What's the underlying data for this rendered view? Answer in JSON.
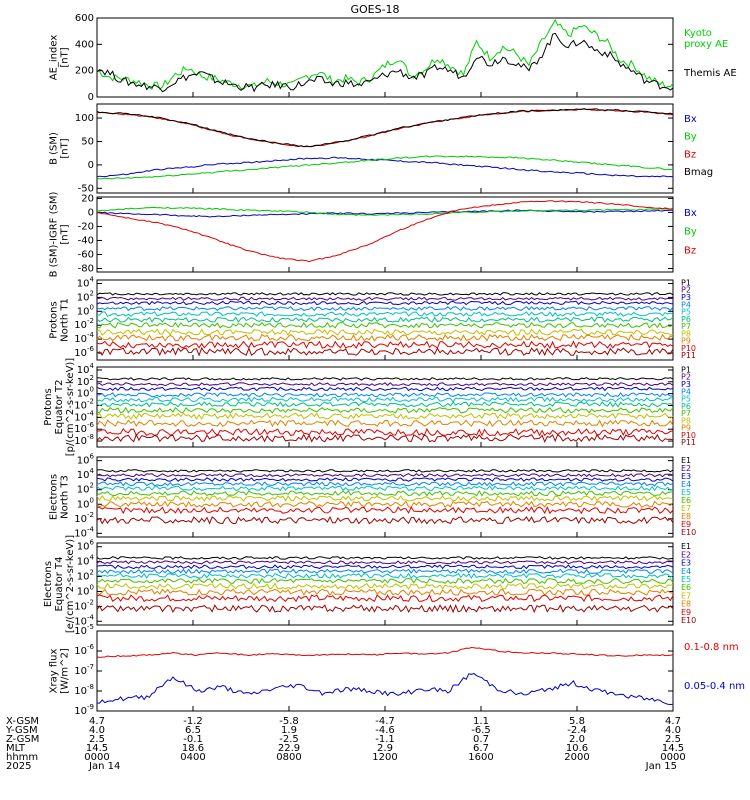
{
  "title": "GOES-18",
  "chart_data": [
    {
      "type": "line",
      "ylabel": "AE_index\n[nT]",
      "yticks": [
        "600",
        "400",
        "200",
        "0"
      ],
      "ylim": [
        0,
        600
      ],
      "series": [
        {
          "name": "Kyoto\nproxy AE",
          "color": "#00d000",
          "values": [
            200,
            150,
            140,
            120,
            90,
            80,
            170,
            220,
            160,
            140,
            110,
            90,
            80,
            120,
            100,
            90,
            160,
            190,
            120,
            140,
            110,
            150,
            240,
            300,
            160,
            210,
            300,
            240,
            170,
            420,
            300,
            380,
            330,
            240,
            420,
            560,
            470,
            540,
            480,
            410,
            280,
            240,
            150,
            100,
            80
          ]
        },
        {
          "name": "Themis AE",
          "color": "#000000",
          "values": [
            220,
            180,
            120,
            100,
            80,
            70,
            120,
            160,
            180,
            130,
            100,
            80,
            70,
            90,
            90,
            80,
            110,
            130,
            100,
            110,
            90,
            120,
            170,
            200,
            150,
            160,
            230,
            200,
            150,
            320,
            250,
            300,
            260,
            200,
            330,
            480,
            380,
            430,
            360,
            330,
            250,
            190,
            120,
            90,
            70
          ]
        }
      ]
    },
    {
      "type": "line",
      "ylabel": "B (SM)\n[nT]",
      "yticks": [
        "100",
        "50",
        "0",
        "-50"
      ],
      "ylim": [
        -60,
        130
      ],
      "series": [
        {
          "name": "Bx",
          "color": "#0000c8",
          "values": [
            -25,
            -20,
            -10,
            -5,
            2,
            5,
            10,
            14,
            15,
            12,
            8,
            5,
            0,
            -5,
            -10,
            -15,
            -18,
            -22,
            -25,
            -25
          ]
        },
        {
          "name": "By",
          "color": "#00c800",
          "values": [
            -30,
            -28,
            -25,
            -20,
            -15,
            -10,
            -5,
            0,
            5,
            10,
            15,
            18,
            18,
            17,
            15,
            10,
            5,
            0,
            -5,
            -10
          ]
        },
        {
          "name": "Bz",
          "color": "#e00000",
          "values": [
            112,
            108,
            100,
            88,
            70,
            55,
            45,
            38,
            48,
            62,
            78,
            90,
            100,
            108,
            114,
            116,
            118,
            116,
            113,
            108
          ]
        },
        {
          "name": "Bmag",
          "color": "#000000",
          "values": [
            113,
            109,
            101,
            89,
            71,
            56,
            46,
            39,
            49,
            63,
            79,
            91,
            101,
            109,
            115,
            117,
            119,
            117,
            114,
            109
          ]
        }
      ]
    },
    {
      "type": "line",
      "ylabel": "B (SM)-IGRF (SM)\n[nT]",
      "yticks": [
        "20",
        "0",
        "-20",
        "-40",
        "-60",
        "-80"
      ],
      "ylim": [
        -85,
        22
      ],
      "series": [
        {
          "name": "Bx",
          "color": "#0000c8",
          "values": [
            0,
            -2,
            -3,
            -5,
            -6,
            -4,
            -3,
            -2,
            -1,
            -2,
            -1,
            0,
            1,
            2,
            3,
            2,
            1,
            1,
            2,
            3
          ]
        },
        {
          "name": "By",
          "color": "#00c800",
          "values": [
            2,
            5,
            7,
            6,
            5,
            3,
            2,
            0,
            -3,
            -4,
            -3,
            -2,
            0,
            1,
            2,
            3,
            3,
            4,
            4,
            5
          ]
        },
        {
          "name": "Bz",
          "color": "#e00000",
          "values": [
            0,
            -8,
            -15,
            -25,
            -40,
            -55,
            -65,
            -70,
            -60,
            -45,
            -25,
            -8,
            5,
            10,
            15,
            16,
            15,
            12,
            8,
            5
          ]
        }
      ]
    },
    {
      "type": "line",
      "ylabel": "Protons\nNorth T1",
      "yticks": [
        "10^4",
        "10^2",
        "10^0",
        "10^-2",
        "10^-4",
        "10^-6"
      ],
      "ylim": [
        -7,
        4.5
      ],
      "series": [
        {
          "name": "P1",
          "color": "#000000",
          "values": [
            2.5
          ]
        },
        {
          "name": "P2",
          "color": "#4b0082",
          "values": [
            1.8
          ]
        },
        {
          "name": "P3",
          "color": "#0000c8",
          "values": [
            1.2
          ]
        },
        {
          "name": "P4",
          "color": "#0080ff",
          "values": [
            0.4
          ]
        },
        {
          "name": "P5",
          "color": "#00c0c0",
          "values": [
            -0.4
          ]
        },
        {
          "name": "P6",
          "color": "#00c080",
          "values": [
            -1.2
          ]
        },
        {
          "name": "P7",
          "color": "#40c000",
          "values": [
            -2.0
          ]
        },
        {
          "name": "P8",
          "color": "#c0c000",
          "values": [
            -3.0
          ]
        },
        {
          "name": "P9",
          "color": "#e08000",
          "values": [
            -3.8
          ]
        },
        {
          "name": "P10",
          "color": "#e00000",
          "values": [
            -4.8
          ]
        },
        {
          "name": "P11",
          "color": "#a00000",
          "values": [
            -5.8
          ]
        }
      ]
    },
    {
      "type": "line",
      "ylabel": "Protons\nEquator T2\n[p/(cm^2-s-sr-keV)]",
      "yticks": [
        "10^4",
        "10^2",
        "10^0",
        "10^-2",
        "10^-4",
        "10^-6",
        "10^-8"
      ],
      "ylim": [
        -9,
        4.5
      ],
      "series": [
        {
          "name": "P1",
          "color": "#000000",
          "values": [
            2.5
          ]
        },
        {
          "name": "P2",
          "color": "#4b0082",
          "values": [
            1.6
          ]
        },
        {
          "name": "P3",
          "color": "#0000c8",
          "values": [
            0.8
          ]
        },
        {
          "name": "P4",
          "color": "#0080ff",
          "values": [
            -0.2
          ]
        },
        {
          "name": "P5",
          "color": "#00c0c0",
          "values": [
            -1.0
          ]
        },
        {
          "name": "P6",
          "color": "#00c080",
          "values": [
            -1.8
          ]
        },
        {
          "name": "P7",
          "color": "#40c000",
          "values": [
            -2.8
          ]
        },
        {
          "name": "P8",
          "color": "#c0c000",
          "values": [
            -3.8
          ]
        },
        {
          "name": "P9",
          "color": "#e08000",
          "values": [
            -5
          ]
        },
        {
          "name": "P10",
          "color": "#e00000",
          "values": [
            -6.5
          ]
        },
        {
          "name": "P11",
          "color": "#a00000",
          "values": [
            -7.5
          ]
        }
      ]
    },
    {
      "type": "line",
      "ylabel": "Electrons\nNorth T3",
      "yticks": [
        "10^6",
        "10^4",
        "10^2",
        "10^0",
        "10^-2",
        "10^-4"
      ],
      "ylim": [
        -4.5,
        6.5
      ],
      "series": [
        {
          "name": "E1",
          "color": "#000000",
          "values": [
            4.6
          ]
        },
        {
          "name": "E2",
          "color": "#4b0082",
          "values": [
            4.0
          ]
        },
        {
          "name": "E3",
          "color": "#0000c8",
          "values": [
            3.4
          ]
        },
        {
          "name": "E4",
          "color": "#0080ff",
          "values": [
            2.8
          ]
        },
        {
          "name": "E5",
          "color": "#00c0c0",
          "values": [
            2.2
          ]
        },
        {
          "name": "E6",
          "color": "#40c000",
          "values": [
            1.5
          ]
        },
        {
          "name": "E7",
          "color": "#c0c000",
          "values": [
            0.8
          ]
        },
        {
          "name": "E8",
          "color": "#e08000",
          "values": [
            0.0
          ]
        },
        {
          "name": "E9",
          "color": "#e00000",
          "values": [
            -0.8
          ]
        },
        {
          "name": "E10",
          "color": "#a00000",
          "values": [
            -2.2
          ]
        }
      ]
    },
    {
      "type": "line",
      "ylabel": "Electrons\nEquator T4\n[e/(cm^2-s-sr-keV)]",
      "yticks": [
        "10^6",
        "10^4",
        "10^2",
        "10^0",
        "10^-2",
        "10^-4"
      ],
      "ylim": [
        -4.5,
        6.5
      ],
      "series": [
        {
          "name": "E1",
          "color": "#000000",
          "values": [
            4.5
          ]
        },
        {
          "name": "E2",
          "color": "#4b0082",
          "values": [
            3.9
          ]
        },
        {
          "name": "E3",
          "color": "#0000c8",
          "values": [
            3.3
          ]
        },
        {
          "name": "E4",
          "color": "#0080ff",
          "values": [
            2.7
          ]
        },
        {
          "name": "E5",
          "color": "#00c0c0",
          "values": [
            2.1
          ]
        },
        {
          "name": "E6",
          "color": "#40c000",
          "values": [
            1.4
          ]
        },
        {
          "name": "E7",
          "color": "#c0c000",
          "values": [
            0.7
          ]
        },
        {
          "name": "E8",
          "color": "#e08000",
          "values": [
            -0.1
          ]
        },
        {
          "name": "E9",
          "color": "#e00000",
          "values": [
            -0.9
          ]
        },
        {
          "name": "E10",
          "color": "#a00000",
          "values": [
            -2.3
          ]
        }
      ]
    },
    {
      "type": "line",
      "ylabel": "Xray flux\n[W/m^2]",
      "yticks": [
        "10^-5",
        "10^-6",
        "10^-7",
        "10^-8",
        "10^-9"
      ],
      "ylim": [
        -9,
        -5
      ],
      "series": [
        {
          "name": "0.1-0.8 nm",
          "color": "#e00000",
          "values": [
            -6.3,
            -6.25,
            -6.2,
            -6.1,
            -6.2,
            -6.1,
            -6.2,
            -6.15,
            -6.2,
            -6.2,
            -6.15,
            -6.2,
            -6.1,
            -6.15,
            -6.1,
            -5.8,
            -6.0,
            -6.1,
            -6.1,
            -6.15,
            -6.2,
            -6.25,
            -6.2,
            -6.2
          ]
        },
        {
          "name": "0.05-0.4 nm",
          "color": "#0000c8",
          "values": [
            -8.5,
            -8.4,
            -8.3,
            -7.3,
            -8.0,
            -7.8,
            -8.2,
            -7.9,
            -7.7,
            -8.1,
            -7.9,
            -8.0,
            -8.2,
            -7.9,
            -8.0,
            -7.1,
            -7.9,
            -8.2,
            -7.9,
            -7.6,
            -8.0,
            -8.2,
            -8.4,
            -8.6
          ]
        }
      ]
    }
  ],
  "footer": {
    "row_labels": [
      "X-GSM",
      "Y-GSM",
      "Z-GSM",
      "MLT",
      "hhmm",
      "2025"
    ],
    "columns": [
      [
        "4.7",
        "4.0",
        "2.5",
        "14.5",
        "0000",
        "Jan 14"
      ],
      [
        "-1.2",
        "6.5",
        "-0.1",
        "18.6",
        "0400",
        ""
      ],
      [
        "-5.8",
        "1.9",
        "-2.5",
        "22.9",
        "0800",
        ""
      ],
      [
        "-4.7",
        "-4.6",
        "-1.1",
        "2.9",
        "1200",
        ""
      ],
      [
        "1.1",
        "-6.5",
        "0.7",
        "6.7",
        "1600",
        ""
      ],
      [
        "5.8",
        "-2.4",
        "2.0",
        "10.6",
        "2000",
        ""
      ],
      [
        "4.7",
        "4.0",
        "2.5",
        "14.5",
        "0000",
        "Jan 15"
      ]
    ]
  }
}
